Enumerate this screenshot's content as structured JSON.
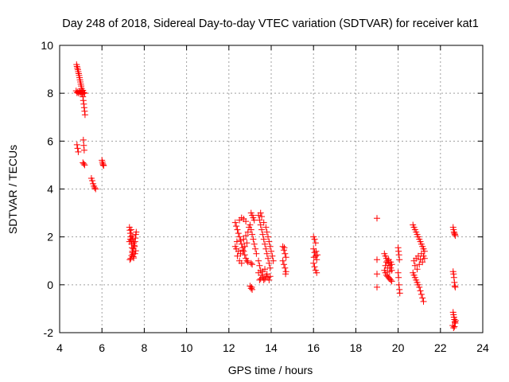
{
  "chart_data": {
    "type": "scatter",
    "title": "Day 248 of 2018, Sidereal Day-to-day VTEC variation (SDTVAR) for receiver kat1",
    "xlabel": "GPS time / hours",
    "ylabel": "SDTVAR / TECUs",
    "xlim": [
      4,
      24
    ],
    "ylim": [
      -2,
      10
    ],
    "xticks": [
      "4",
      "6",
      "8",
      "10",
      "12",
      "14",
      "16",
      "18",
      "20",
      "22",
      "24"
    ],
    "yticks": [
      "-2",
      "0",
      "2",
      "4",
      "6",
      "8",
      "10"
    ],
    "grid": true,
    "marker": "+",
    "color": "#ff0000",
    "series": [
      {
        "name": "kat1",
        "points": [
          [
            4.8,
            9.2
          ],
          [
            4.82,
            9.12
          ],
          [
            4.84,
            9.05
          ],
          [
            4.86,
            8.98
          ],
          [
            4.88,
            8.9
          ],
          [
            4.9,
            8.82
          ],
          [
            4.92,
            8.74
          ],
          [
            4.94,
            8.65
          ],
          [
            4.96,
            8.56
          ],
          [
            4.98,
            8.47
          ],
          [
            5.0,
            8.38
          ],
          [
            5.02,
            8.3
          ],
          [
            5.04,
            8.2
          ],
          [
            5.06,
            8.1
          ],
          [
            5.08,
            7.98
          ],
          [
            5.1,
            7.85
          ],
          [
            5.12,
            7.7
          ],
          [
            5.14,
            7.55
          ],
          [
            5.16,
            7.4
          ],
          [
            5.18,
            7.25
          ],
          [
            5.2,
            7.1
          ],
          [
            4.78,
            8.1
          ],
          [
            4.82,
            8.02
          ],
          [
            4.86,
            8.06
          ],
          [
            4.9,
            8.0
          ],
          [
            4.94,
            8.08
          ],
          [
            4.98,
            8.04
          ],
          [
            5.02,
            7.98
          ],
          [
            5.06,
            8.05
          ],
          [
            5.1,
            8.12
          ],
          [
            5.14,
            8.03
          ],
          [
            5.18,
            8.0
          ],
          [
            4.82,
            5.85
          ],
          [
            4.85,
            5.7
          ],
          [
            4.88,
            5.55
          ],
          [
            5.12,
            6.05
          ],
          [
            5.14,
            5.82
          ],
          [
            5.16,
            5.62
          ],
          [
            5.1,
            5.1
          ],
          [
            5.14,
            5.05
          ],
          [
            5.18,
            5.0
          ],
          [
            5.5,
            4.45
          ],
          [
            5.54,
            4.35
          ],
          [
            5.58,
            4.22
          ],
          [
            5.62,
            4.12
          ],
          [
            5.66,
            4.05
          ],
          [
            5.7,
            4.0
          ],
          [
            6.0,
            5.2
          ],
          [
            6.02,
            5.12
          ],
          [
            6.04,
            5.05
          ],
          [
            6.06,
            5.0
          ],
          [
            6.08,
            4.98
          ],
          [
            7.3,
            2.4
          ],
          [
            7.32,
            2.28
          ],
          [
            7.34,
            2.15
          ],
          [
            7.36,
            2.0
          ],
          [
            7.38,
            1.85
          ],
          [
            7.4,
            1.7
          ],
          [
            7.42,
            1.55
          ],
          [
            7.44,
            1.4
          ],
          [
            7.46,
            1.28
          ],
          [
            7.48,
            1.18
          ],
          [
            7.5,
            1.12
          ],
          [
            7.32,
            1.05
          ],
          [
            7.36,
            1.1
          ],
          [
            7.4,
            1.22
          ],
          [
            7.44,
            1.35
          ],
          [
            7.48,
            1.5
          ],
          [
            7.52,
            1.65
          ],
          [
            7.56,
            1.8
          ],
          [
            7.58,
            1.95
          ],
          [
            7.6,
            2.1
          ],
          [
            7.62,
            2.2
          ],
          [
            7.38,
            2.3
          ],
          [
            7.42,
            2.05
          ],
          [
            7.46,
            1.9
          ],
          [
            7.5,
            1.75
          ],
          [
            7.54,
            1.6
          ],
          [
            7.3,
            1.8
          ],
          [
            7.34,
            1.9
          ],
          [
            7.56,
            1.3
          ],
          [
            7.6,
            1.42
          ],
          [
            12.3,
            2.6
          ],
          [
            12.35,
            2.45
          ],
          [
            12.4,
            2.3
          ],
          [
            12.45,
            2.15
          ],
          [
            12.5,
            2.0
          ],
          [
            12.55,
            1.85
          ],
          [
            12.6,
            1.7
          ],
          [
            12.65,
            1.55
          ],
          [
            12.7,
            1.4
          ],
          [
            12.75,
            1.25
          ],
          [
            12.8,
            1.1
          ],
          [
            12.85,
            1.0
          ],
          [
            12.9,
            0.95
          ],
          [
            12.35,
            1.5
          ],
          [
            12.45,
            1.4
          ],
          [
            12.55,
            1.3
          ],
          [
            12.65,
            1.45
          ],
          [
            12.75,
            1.6
          ],
          [
            12.85,
            1.75
          ],
          [
            12.4,
            1.2
          ],
          [
            12.5,
            1.0
          ],
          [
            12.6,
            0.9
          ],
          [
            12.7,
            1.9
          ],
          [
            12.8,
            2.05
          ],
          [
            12.9,
            2.2
          ],
          [
            12.95,
            2.4
          ],
          [
            12.5,
            2.7
          ],
          [
            12.6,
            2.8
          ],
          [
            12.7,
            2.75
          ],
          [
            12.8,
            2.65
          ],
          [
            12.3,
            1.6
          ],
          [
            12.38,
            1.8
          ],
          [
            13.05,
            3.0
          ],
          [
            13.1,
            2.9
          ],
          [
            13.15,
            2.8
          ],
          [
            13.2,
            2.7
          ],
          [
            13.0,
            2.5
          ],
          [
            13.05,
            2.3
          ],
          [
            13.1,
            2.1
          ],
          [
            13.15,
            1.9
          ],
          [
            13.2,
            1.7
          ],
          [
            13.25,
            1.5
          ],
          [
            13.3,
            1.3
          ],
          [
            13.05,
            0.9
          ],
          [
            13.1,
            0.85
          ],
          [
            13.0,
            -0.05
          ],
          [
            13.05,
            -0.15
          ],
          [
            13.1,
            -0.2
          ],
          [
            13.08,
            -0.1
          ],
          [
            13.4,
            2.9
          ],
          [
            13.45,
            2.7
          ],
          [
            13.5,
            2.5
          ],
          [
            13.55,
            2.3
          ],
          [
            13.6,
            2.1
          ],
          [
            13.65,
            1.9
          ],
          [
            13.7,
            1.7
          ],
          [
            13.75,
            1.5
          ],
          [
            13.8,
            1.3
          ],
          [
            13.85,
            1.1
          ],
          [
            13.9,
            0.9
          ],
          [
            13.95,
            0.7
          ],
          [
            13.4,
            1.0
          ],
          [
            13.45,
            0.8
          ],
          [
            13.5,
            0.6
          ],
          [
            13.55,
            0.4
          ],
          [
            13.6,
            0.3
          ],
          [
            13.65,
            0.2
          ],
          [
            13.7,
            0.25
          ],
          [
            13.75,
            0.35
          ],
          [
            13.8,
            0.45
          ],
          [
            13.85,
            0.3
          ],
          [
            13.9,
            0.2
          ],
          [
            13.4,
            0.5
          ],
          [
            13.5,
            0.25
          ],
          [
            13.6,
            0.55
          ],
          [
            13.7,
            0.65
          ],
          [
            13.8,
            2.2
          ],
          [
            13.85,
            2.0
          ],
          [
            13.9,
            1.8
          ],
          [
            13.95,
            1.6
          ],
          [
            14.0,
            1.4
          ],
          [
            14.05,
            1.2
          ],
          [
            14.1,
            1.0
          ],
          [
            13.5,
            3.0
          ],
          [
            13.55,
            2.85
          ],
          [
            13.65,
            2.6
          ],
          [
            13.75,
            2.4
          ],
          [
            13.45,
            0.2
          ],
          [
            13.95,
            0.35
          ],
          [
            14.55,
            1.6
          ],
          [
            14.6,
            1.45
          ],
          [
            14.65,
            1.3
          ],
          [
            14.7,
            1.15
          ],
          [
            14.55,
            1.0
          ],
          [
            14.6,
            0.85
          ],
          [
            14.65,
            0.7
          ],
          [
            14.7,
            0.55
          ],
          [
            14.62,
            1.55
          ],
          [
            14.68,
            0.45
          ],
          [
            16.0,
            2.0
          ],
          [
            16.05,
            1.9
          ],
          [
            16.1,
            1.75
          ],
          [
            16.0,
            1.5
          ],
          [
            16.05,
            1.35
          ],
          [
            16.1,
            1.2
          ],
          [
            16.15,
            1.05
          ],
          [
            16.0,
            0.9
          ],
          [
            16.05,
            0.75
          ],
          [
            16.1,
            0.6
          ],
          [
            16.15,
            0.5
          ],
          [
            16.12,
            1.4
          ],
          [
            16.18,
            1.25
          ],
          [
            16.02,
            1.15
          ],
          [
            19.0,
            2.78
          ],
          [
            19.0,
            1.05
          ],
          [
            19.0,
            0.45
          ],
          [
            19.0,
            -0.1
          ],
          [
            19.35,
            1.3
          ],
          [
            19.4,
            1.2
          ],
          [
            19.45,
            1.1
          ],
          [
            19.5,
            1.0
          ],
          [
            19.55,
            0.9
          ],
          [
            19.6,
            0.8
          ],
          [
            19.65,
            0.7
          ],
          [
            19.7,
            0.6
          ],
          [
            19.35,
            0.6
          ],
          [
            19.4,
            0.5
          ],
          [
            19.45,
            0.4
          ],
          [
            19.5,
            0.35
          ],
          [
            19.55,
            0.3
          ],
          [
            19.6,
            0.25
          ],
          [
            19.65,
            0.2
          ],
          [
            19.7,
            0.15
          ],
          [
            19.45,
            0.95
          ],
          [
            19.55,
            1.05
          ],
          [
            19.65,
            0.95
          ],
          [
            19.4,
            0.8
          ],
          [
            19.6,
            0.55
          ],
          [
            19.7,
            0.85
          ],
          [
            19.5,
            0.7
          ],
          [
            20.0,
            1.55
          ],
          [
            20.02,
            1.4
          ],
          [
            20.04,
            1.25
          ],
          [
            20.06,
            1.05
          ],
          [
            20.0,
            0.5
          ],
          [
            20.02,
            0.3
          ],
          [
            20.04,
            0.0
          ],
          [
            20.06,
            -0.2
          ],
          [
            20.08,
            -0.35
          ],
          [
            20.7,
            2.5
          ],
          [
            20.75,
            2.4
          ],
          [
            20.8,
            2.3
          ],
          [
            20.85,
            2.2
          ],
          [
            20.9,
            2.1
          ],
          [
            20.95,
            2.0
          ],
          [
            21.0,
            1.9
          ],
          [
            21.05,
            1.8
          ],
          [
            21.1,
            1.7
          ],
          [
            21.15,
            1.6
          ],
          [
            21.2,
            1.5
          ],
          [
            21.25,
            1.4
          ],
          [
            20.7,
            0.5
          ],
          [
            20.75,
            0.4
          ],
          [
            20.8,
            0.3
          ],
          [
            20.85,
            0.2
          ],
          [
            20.9,
            0.1
          ],
          [
            20.95,
            0.0
          ],
          [
            21.0,
            -0.1
          ],
          [
            21.05,
            -0.25
          ],
          [
            21.1,
            -0.4
          ],
          [
            21.15,
            -0.55
          ],
          [
            21.2,
            -0.7
          ],
          [
            20.75,
            1.0
          ],
          [
            20.85,
            1.1
          ],
          [
            20.95,
            1.2
          ],
          [
            21.05,
            1.05
          ],
          [
            21.15,
            0.95
          ],
          [
            21.25,
            1.1
          ],
          [
            20.8,
            0.8
          ],
          [
            20.9,
            0.65
          ],
          [
            21.0,
            0.85
          ],
          [
            21.1,
            1.3
          ],
          [
            21.2,
            1.2
          ],
          [
            22.6,
            2.4
          ],
          [
            22.62,
            2.3
          ],
          [
            22.64,
            2.2
          ],
          [
            22.66,
            2.15
          ],
          [
            22.68,
            2.1
          ],
          [
            22.7,
            2.05
          ],
          [
            22.6,
            0.55
          ],
          [
            22.62,
            0.45
          ],
          [
            22.64,
            0.3
          ],
          [
            22.66,
            0.1
          ],
          [
            22.68,
            -0.05
          ],
          [
            22.7,
            -0.1
          ],
          [
            22.6,
            -1.15
          ],
          [
            22.62,
            -1.25
          ],
          [
            22.64,
            -1.35
          ],
          [
            22.66,
            -1.45
          ],
          [
            22.68,
            -1.55
          ],
          [
            22.7,
            -1.6
          ],
          [
            22.58,
            -1.7
          ],
          [
            22.62,
            -1.8
          ],
          [
            22.66,
            -1.75
          ],
          [
            22.72,
            -1.5
          ]
        ]
      }
    ]
  }
}
